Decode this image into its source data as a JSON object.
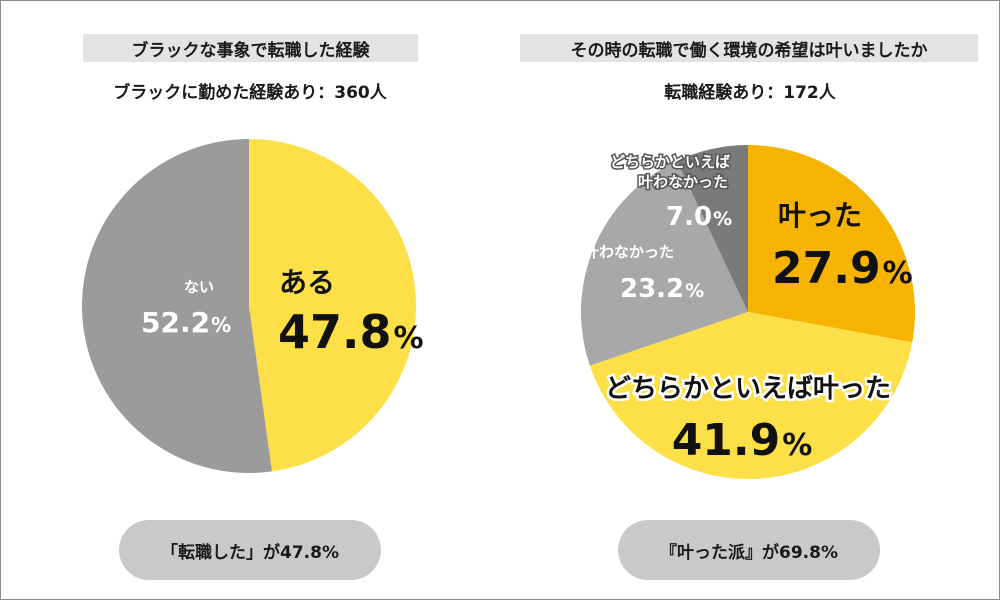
{
  "chart_data": [
    {
      "type": "pie",
      "title": "ブラックな事象で転職した経験",
      "subtitle": "ブラックに勤めた経験あり：360人",
      "slices": [
        {
          "label": "ある",
          "value": 47.8,
          "display": "47.8",
          "color": "#fde047"
        },
        {
          "label": "ない",
          "value": 52.2,
          "display": "52.2",
          "color": "#9b9b9b"
        }
      ],
      "footer": "「転職した」が47.8%"
    },
    {
      "type": "pie",
      "title": "その時の転職で働く環境の希望は叶いましたか",
      "subtitle": "転職経験あり：172人",
      "slices": [
        {
          "label": "叶った",
          "value": 27.9,
          "display": "27.9",
          "color": "#f6b400"
        },
        {
          "label": "どちらかといえば叶った",
          "value": 41.9,
          "display": "41.9",
          "color": "#fde047"
        },
        {
          "label": "叶わなかった",
          "value": 23.2,
          "display": "23.2",
          "color": "#a8a8a8"
        },
        {
          "label_lines": [
            "どちらかといえば",
            "叶わなかった"
          ],
          "value": 7.0,
          "display": "7.0",
          "color": "#7a7a7a"
        }
      ],
      "footer": "『叶った派』が69.8%"
    }
  ],
  "percent_sign": "%"
}
